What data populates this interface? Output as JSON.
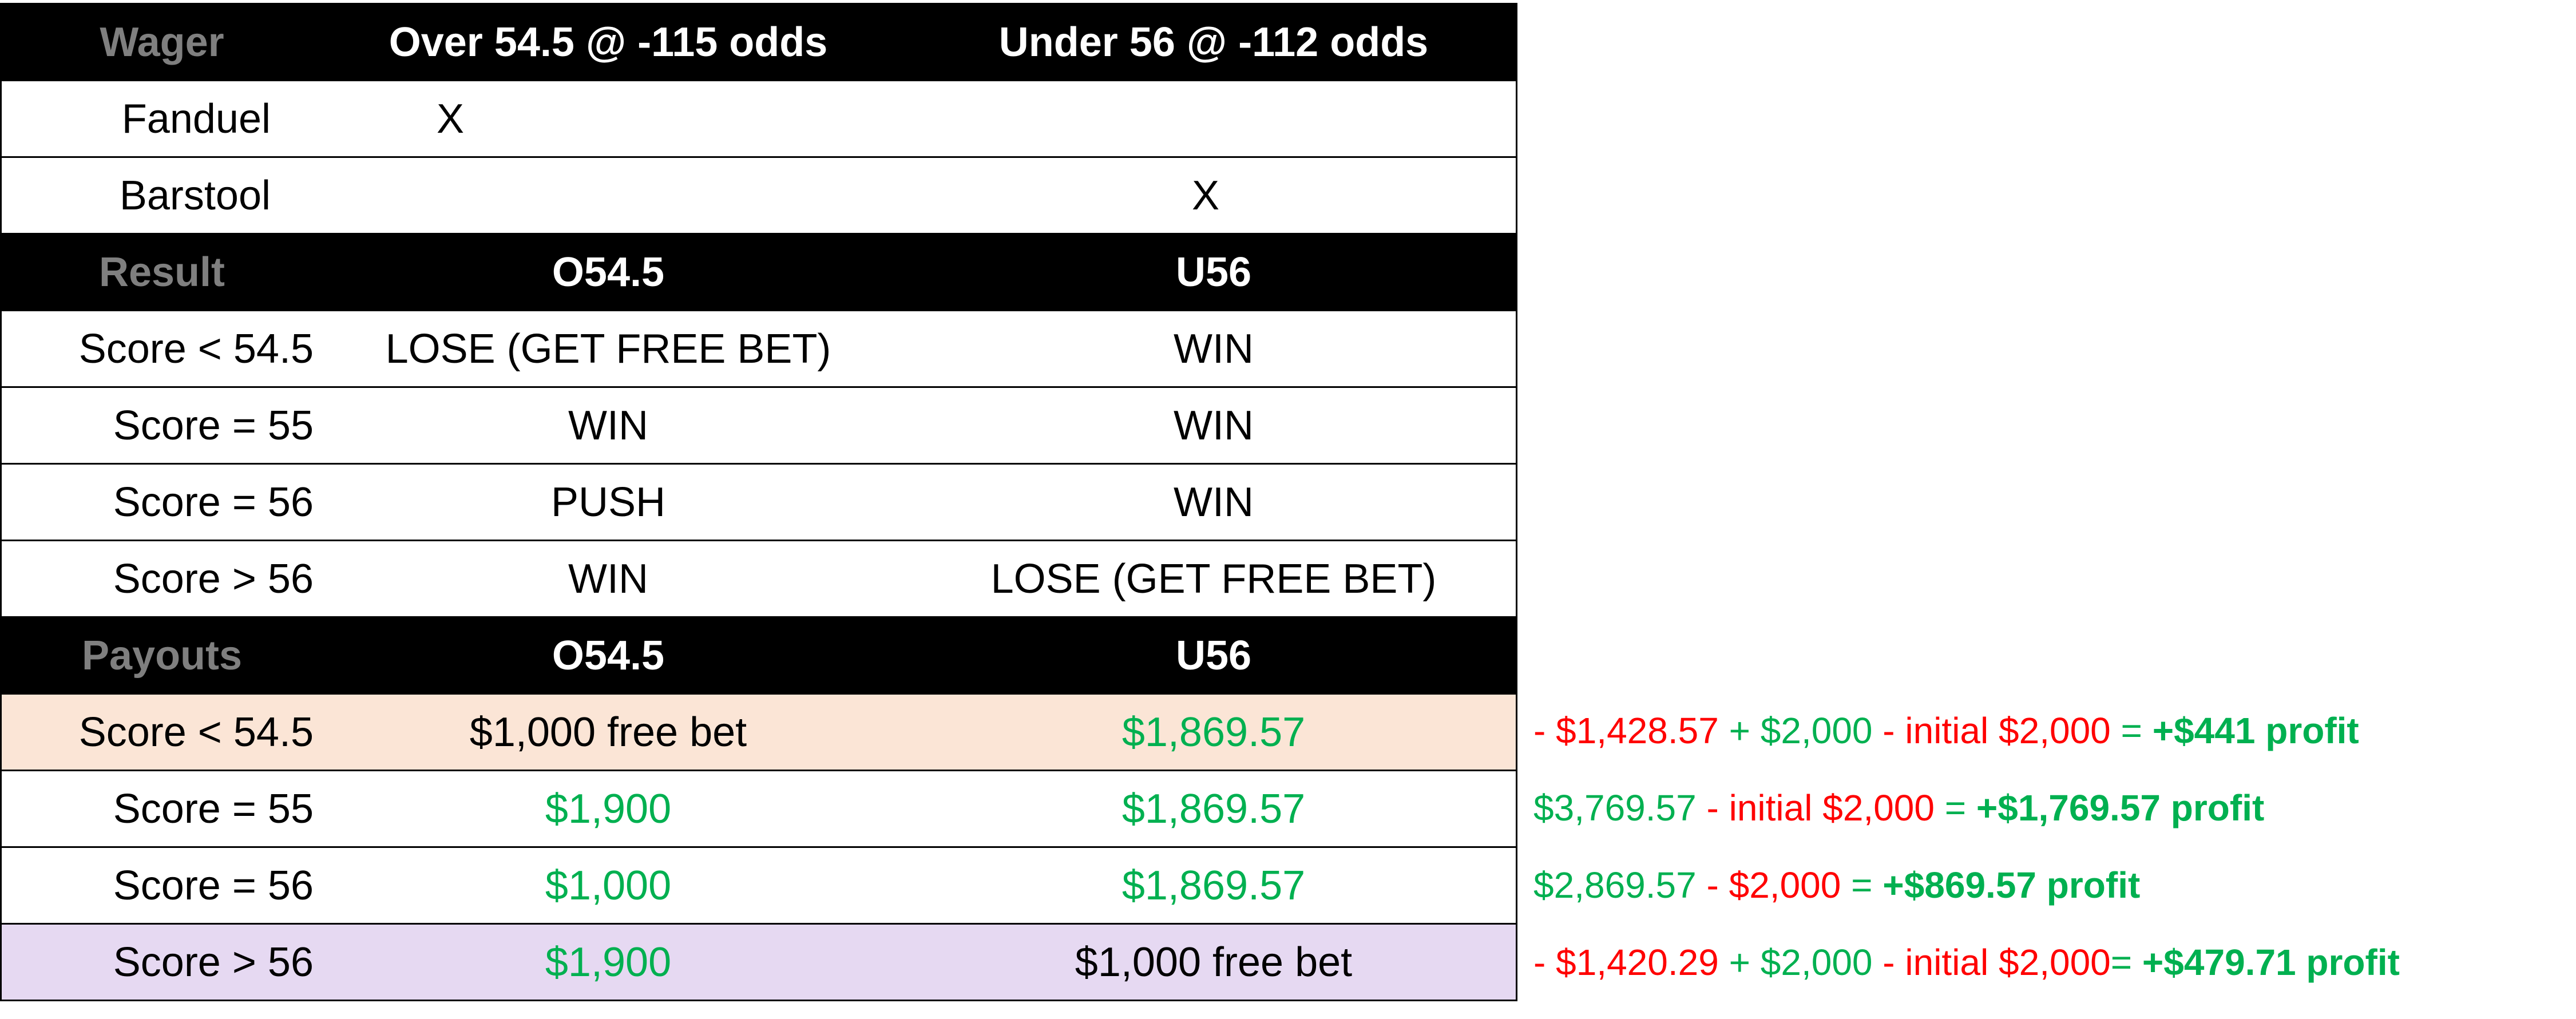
{
  "table": {
    "wager_header": {
      "label": "Wager",
      "col1": "Over 54.5 @ -115 odds",
      "col2": "Under 56 @ -112 odds"
    },
    "books": [
      {
        "name": "Fanduel",
        "col1": "X",
        "col2": ""
      },
      {
        "name": "Barstool",
        "col1": "",
        "col2": "X"
      }
    ],
    "result_header": {
      "label": "Result",
      "col1": "O54.5",
      "col2": "U56"
    },
    "results": [
      {
        "score": "Score < 54.5",
        "col1": "LOSE (GET FREE BET)",
        "col2": "WIN"
      },
      {
        "score": "Score = 55",
        "col1": "WIN",
        "col2": "WIN"
      },
      {
        "score": "Score = 56",
        "col1": "PUSH",
        "col2": "WIN"
      },
      {
        "score": "Score > 56",
        "col1": "WIN",
        "col2": "LOSE (GET FREE BET)"
      }
    ],
    "payouts_header": {
      "label": "Payouts",
      "col1": "O54.5",
      "col2": "U56"
    },
    "payouts": [
      {
        "score": "Score < 54.5",
        "col1": "$1,000 free bet",
        "col1_color": "black",
        "col2": "$1,869.57",
        "col2_color": "green",
        "row_bg": "#fbe5d6"
      },
      {
        "score": "Score = 55",
        "col1": "$1,900",
        "col1_color": "green",
        "col2": "$1,869.57",
        "col2_color": "green",
        "row_bg": "#ffffff"
      },
      {
        "score": "Score = 56",
        "col1": "$1,000",
        "col1_color": "green",
        "col2": "$1,869.57",
        "col2_color": "green",
        "row_bg": "#ffffff"
      },
      {
        "score": "Score > 56",
        "col1": "$1,900",
        "col1_color": "green",
        "col2": "$1,000 free bet",
        "col2_color": "black",
        "row_bg": "#e6d9f2"
      }
    ]
  },
  "notes": [
    {
      "parts": [
        {
          "text": "- $1,428.57 ",
          "color": "red"
        },
        {
          "text": "+ $2,000 ",
          "color": "green"
        },
        {
          "text": "- initial $2,000 ",
          "color": "red"
        },
        {
          "text": "= ",
          "color": "green"
        },
        {
          "text": "+$441 profit",
          "color": "green",
          "bold": true
        }
      ]
    },
    {
      "parts": [
        {
          "text": "$3,769.57 ",
          "color": "green"
        },
        {
          "text": "- initial $2,000 ",
          "color": "red"
        },
        {
          "text": "= ",
          "color": "green"
        },
        {
          "text": "+$1,769.57 profit",
          "color": "green",
          "bold": true
        }
      ]
    },
    {
      "parts": [
        {
          "text": "$2,869.57 ",
          "color": "green"
        },
        {
          "text": "- $2,000 ",
          "color": "red"
        },
        {
          "text": "= ",
          "color": "green"
        },
        {
          "text": "+$869.57 profit",
          "color": "green",
          "bold": true
        }
      ]
    },
    {
      "parts": [
        {
          "text": "- $1,420.29 ",
          "color": "red"
        },
        {
          "text": "+ $2,000 ",
          "color": "green"
        },
        {
          "text": "- initial $2,000",
          "color": "red"
        },
        {
          "text": "= ",
          "color": "green"
        },
        {
          "text": "+$479.71 profit",
          "color": "green",
          "bold": true
        }
      ]
    }
  ],
  "colors": {
    "green": "#00b050",
    "red": "#ff0000",
    "header_label": "#7f7f7f",
    "peach": "#fbe5d6",
    "lavender": "#e6d9f2"
  }
}
